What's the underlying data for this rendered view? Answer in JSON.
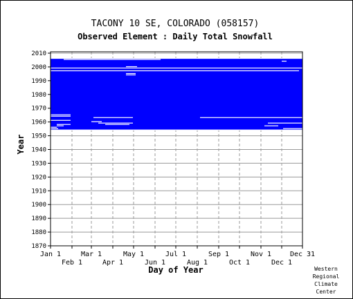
{
  "chart_data": {
    "type": "heatmap",
    "title": "TACONY 10 SE, COLORADO   (058157)",
    "subtitle": "Observed Element : Daily Total Snowfall",
    "xlabel": "Day of Year",
    "ylabel": "Year",
    "xlim": [
      1,
      365
    ],
    "ylim": [
      1870,
      2011
    ],
    "yticks": [
      1870,
      1880,
      1890,
      1900,
      1910,
      1920,
      1930,
      1940,
      1950,
      1960,
      1970,
      1980,
      1990,
      2000,
      2010
    ],
    "xticks_upper": [
      {
        "label": "Jan 1",
        "day": 1
      },
      {
        "label": "Mar 1",
        "day": 60
      },
      {
        "label": "May 1",
        "day": 121
      },
      {
        "label": "Jul 1",
        "day": 182
      },
      {
        "label": "Sep 1",
        "day": 244
      },
      {
        "label": "Nov 1",
        "day": 305
      },
      {
        "label": "Dec 31",
        "day": 365
      }
    ],
    "xticks_lower": [
      {
        "label": "Feb 1",
        "day": 32
      },
      {
        "label": "Apr 1",
        "day": 91
      },
      {
        "label": "Jun 1",
        "day": 152
      },
      {
        "label": "Aug 1",
        "day": 213
      },
      {
        "label": "Oct 1",
        "day": 274
      },
      {
        "label": "Dec 1",
        "day": 335
      }
    ],
    "grid": true,
    "data_color": "#0000ff",
    "record_span": {
      "start_year": 1954,
      "end_year": 2006,
      "start_day": 1,
      "end_day": 365
    },
    "missing_periods": [
      {
        "year": 2006,
        "start_day": 1,
        "end_day": 365
      },
      {
        "year": 2005.2,
        "start_day": 20,
        "end_day": 160
      },
      {
        "year": 2004,
        "start_day": 335,
        "end_day": 342
      },
      {
        "year": 2000,
        "start_day": 110,
        "end_day": 126
      },
      {
        "year": 1999,
        "start_day": 1,
        "end_day": 365
      },
      {
        "year": 1997,
        "start_day": 1,
        "end_day": 360
      },
      {
        "year": 1995,
        "start_day": 110,
        "end_day": 124
      },
      {
        "year": 1994,
        "start_day": 110,
        "end_day": 124
      },
      {
        "year": 1965,
        "start_day": 1,
        "end_day": 30
      },
      {
        "year": 1964,
        "start_day": 1,
        "end_day": 30
      },
      {
        "year": 1963,
        "start_day": 63,
        "end_day": 120
      },
      {
        "year": 1963,
        "start_day": 217,
        "end_day": 365
      },
      {
        "year": 1961,
        "start_day": 1,
        "end_day": 30
      },
      {
        "year": 1960,
        "start_day": 60,
        "end_day": 75
      },
      {
        "year": 1959,
        "start_day": 70,
        "end_day": 120
      },
      {
        "year": 1959,
        "start_day": 315,
        "end_day": 365
      },
      {
        "year": 1958,
        "start_day": 10,
        "end_day": 30
      },
      {
        "year": 1958,
        "start_day": 80,
        "end_day": 115
      },
      {
        "year": 1957,
        "start_day": 10,
        "end_day": 20
      },
      {
        "year": 1957,
        "start_day": 310,
        "end_day": 330
      },
      {
        "year": 1956,
        "start_day": 1,
        "end_day": 10
      },
      {
        "year": 1955,
        "start_day": 1,
        "end_day": 12
      },
      {
        "year": 1955,
        "start_day": 337,
        "end_day": 365
      },
      {
        "year": 1954,
        "start_day": 1,
        "end_day": 365
      }
    ]
  },
  "credit": {
    "line1": "Western",
    "line2": "Regional",
    "line3": "Climate",
    "line4": "Center"
  }
}
